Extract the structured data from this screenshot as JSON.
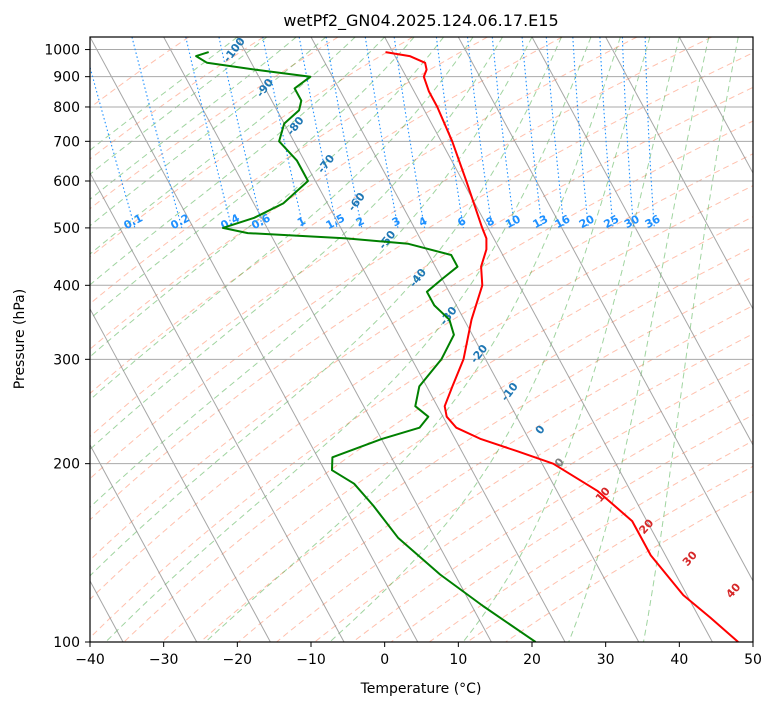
{
  "chart_data": {
    "type": "line",
    "title": "wetPf2_GN04.2025.124.06.17.E15",
    "xlabel": "Temperature (°C)",
    "ylabel": "Pressure (hPa)",
    "xlim": [
      -40,
      50
    ],
    "ylim": [
      1050,
      100
    ],
    "y_scale": "log",
    "grid": true,
    "x_ticks": [
      -40,
      -30,
      -20,
      -10,
      0,
      10,
      20,
      30,
      40,
      50
    ],
    "y_ticks": [
      100,
      200,
      300,
      400,
      500,
      600,
      700,
      800,
      900,
      1000
    ],
    "colors": {
      "temperature": "#ff0000",
      "dewpoint": "#008000",
      "dry_adiabats": "#ff8c69",
      "moist_adiabats": "#2ca02c",
      "mixing_ratio": "#1e90ff",
      "isotherms": "#888888",
      "dry_labels": "#1f77b4",
      "moist_labels": "#d62728"
    },
    "series": [
      {
        "key": "temperature",
        "points": [
          {
            "p": 990,
            "t": -1.0
          },
          {
            "p": 975,
            "t": 2.0
          },
          {
            "p": 950,
            "t": 3.6
          },
          {
            "p": 925,
            "t": 3.3
          },
          {
            "p": 900,
            "t": 2.4
          },
          {
            "p": 850,
            "t": 2.0
          },
          {
            "p": 800,
            "t": 2.0
          },
          {
            "p": 700,
            "t": 1.5
          },
          {
            "p": 600,
            "t": 0.5
          },
          {
            "p": 500,
            "t": -0.8
          },
          {
            "p": 480,
            "t": -1.0
          },
          {
            "p": 460,
            "t": -1.8
          },
          {
            "p": 430,
            "t": -3.8
          },
          {
            "p": 400,
            "t": -5.0
          },
          {
            "p": 350,
            "t": -9.0
          },
          {
            "p": 300,
            "t": -13.0
          },
          {
            "p": 270,
            "t": -16.5
          },
          {
            "p": 250,
            "t": -19.0
          },
          {
            "p": 240,
            "t": -19.5
          },
          {
            "p": 230,
            "t": -19.0
          },
          {
            "p": 220,
            "t": -16.5
          },
          {
            "p": 210,
            "t": -12.5
          },
          {
            "p": 200,
            "t": -8.5
          },
          {
            "p": 180,
            "t": -4.5
          },
          {
            "p": 160,
            "t": -2.0
          },
          {
            "p": 140,
            "t": -2.0
          },
          {
            "p": 120,
            "t": -0.5
          },
          {
            "p": 110,
            "t": 1.5
          },
          {
            "p": 100,
            "t": 3.5
          }
        ]
      },
      {
        "key": "dewpoint",
        "points": [
          {
            "p": 990,
            "t": -25.0
          },
          {
            "p": 975,
            "t": -27.0
          },
          {
            "p": 950,
            "t": -26.0
          },
          {
            "p": 925,
            "t": -20.0
          },
          {
            "p": 900,
            "t": -13.0
          },
          {
            "p": 860,
            "t": -16.0
          },
          {
            "p": 820,
            "t": -16.0
          },
          {
            "p": 790,
            "t": -17.0
          },
          {
            "p": 750,
            "t": -20.0
          },
          {
            "p": 700,
            "t": -22.0
          },
          {
            "p": 650,
            "t": -21.0
          },
          {
            "p": 600,
            "t": -21.0
          },
          {
            "p": 550,
            "t": -26.0
          },
          {
            "p": 520,
            "t": -31.0
          },
          {
            "p": 500,
            "t": -36.0
          },
          {
            "p": 490,
            "t": -33.0
          },
          {
            "p": 480,
            "t": -20.0
          },
          {
            "p": 470,
            "t": -12.0
          },
          {
            "p": 450,
            "t": -7.0
          },
          {
            "p": 430,
            "t": -7.0
          },
          {
            "p": 410,
            "t": -10.0
          },
          {
            "p": 390,
            "t": -13.0
          },
          {
            "p": 370,
            "t": -13.0
          },
          {
            "p": 350,
            "t": -12.0
          },
          {
            "p": 330,
            "t": -12.5
          },
          {
            "p": 300,
            "t": -16.0
          },
          {
            "p": 270,
            "t": -21.0
          },
          {
            "p": 250,
            "t": -23.0
          },
          {
            "p": 240,
            "t": -22.0
          },
          {
            "p": 230,
            "t": -24.0
          },
          {
            "p": 220,
            "t": -30.0
          },
          {
            "p": 205,
            "t": -38.0
          },
          {
            "p": 195,
            "t": -39.0
          },
          {
            "p": 185,
            "t": -37.0
          },
          {
            "p": 170,
            "t": -36.0
          },
          {
            "p": 150,
            "t": -35.0
          },
          {
            "p": 130,
            "t": -32.0
          },
          {
            "p": 115,
            "t": -28.5
          },
          {
            "p": 100,
            "t": -24.0
          }
        ]
      }
    ],
    "dry_adiabat_labels": [
      "-100",
      "-90",
      "-80",
      "-70",
      "-60",
      "-50",
      "-40",
      "-30",
      "-20",
      "-10",
      "0"
    ],
    "moist_adiabat_labels": [
      "0",
      "10",
      "20",
      "30",
      "40"
    ],
    "mixing_ratio_labels": [
      "0.1",
      "0.2",
      "0.4",
      "0.6",
      "1",
      "1.5",
      "2",
      "3",
      "4",
      "6",
      "8",
      "10",
      "13",
      "16",
      "20",
      "25",
      "30",
      "36"
    ]
  }
}
